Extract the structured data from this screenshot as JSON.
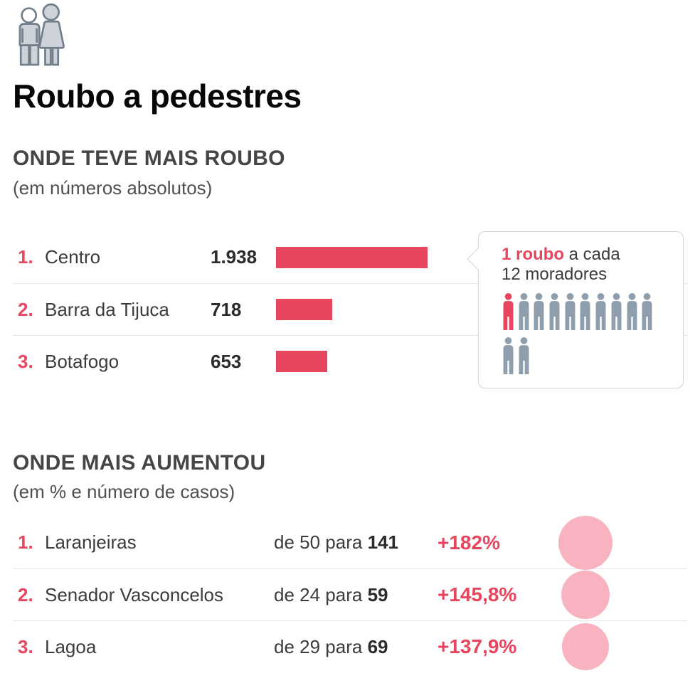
{
  "header": {
    "title": "Roubo a pedestres",
    "icon": "pedestrians-icon"
  },
  "section1": {
    "heading": "ONDE TEVE MAIS ROUBO",
    "subheading": "(em números absolutos)",
    "rows": [
      {
        "rank": "1.",
        "label": "Centro",
        "value_label": "1.938",
        "value": 1938
      },
      {
        "rank": "2.",
        "label": "Barra da Tijuca",
        "value_label": "718",
        "value": 718
      },
      {
        "rank": "3.",
        "label": "Botafogo",
        "value_label": "653",
        "value": 653
      }
    ],
    "tooltip": {
      "highlight": "1 roubo",
      "rest_line1": " a cada",
      "line2": "12 moradores",
      "people_total": 12,
      "people_highlighted": 1,
      "people_row1": 10,
      "people_row2": 2
    }
  },
  "section2": {
    "heading": "ONDE MAIS AUMENTOU",
    "subheading": "(em % e número de casos)",
    "rows": [
      {
        "rank": "1.",
        "label": "Laranjeiras",
        "change_prefix": "de 50 para ",
        "change_value": "141",
        "percent": "+182%",
        "percent_value": 182
      },
      {
        "rank": "2.",
        "label": "Senador Vasconcelos",
        "change_prefix": "de 24 para ",
        "change_value": "59",
        "percent": "+145,8%",
        "percent_value": 145.8
      },
      {
        "rank": "3.",
        "label": "Lagoa",
        "change_prefix": "de 29 para ",
        "change_value": "69",
        "percent": "+137,9%",
        "percent_value": 137.9
      }
    ]
  },
  "colors": {
    "accent_red": "#e8455f",
    "light_pink": "#f9b3c0",
    "person_gray": "#8f9eac",
    "heading_gray": "#454545",
    "text_dark": "#3c3c3c",
    "divider": "#e8e8e8",
    "tooltip_border": "#d6d6d6",
    "icon_fill": "#cdd3d9",
    "icon_stroke": "#73808c"
  },
  "chart_data": [
    {
      "type": "bar",
      "orientation": "horizontal",
      "title": "ONDE TEVE MAIS ROUBO",
      "subtitle": "(em números absolutos)",
      "categories": [
        "Centro",
        "Barra da Tijuca",
        "Botafogo"
      ],
      "values": [
        1938,
        718,
        653
      ],
      "bar_color": "#e8455f",
      "annotation": "Centro: 1 roubo a cada 12 moradores"
    },
    {
      "type": "table",
      "title": "ONDE MAIS AUMENTOU",
      "subtitle": "(em % e número de casos)",
      "categories": [
        "Laranjeiras",
        "Senador Vasconcelos",
        "Lagoa"
      ],
      "series": [
        {
          "name": "casos_antes",
          "values": [
            50,
            24,
            29
          ]
        },
        {
          "name": "casos_depois",
          "values": [
            141,
            59,
            69
          ]
        },
        {
          "name": "aumento_percentual",
          "values": [
            182,
            145.8,
            137.9
          ]
        }
      ],
      "bubble_color": "#f9b3c0"
    }
  ]
}
